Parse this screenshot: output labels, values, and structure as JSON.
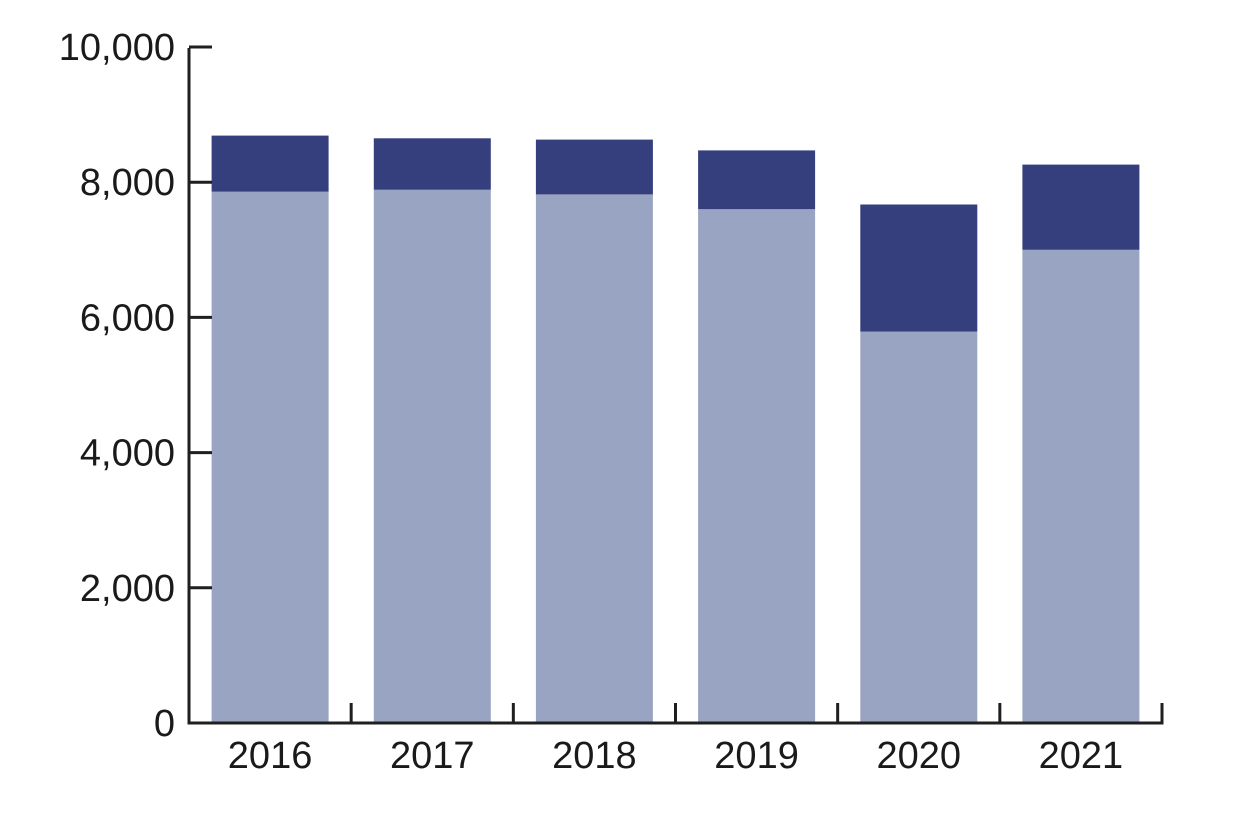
{
  "chart_data": {
    "type": "bar",
    "stacked": true,
    "title": "",
    "xlabel": "",
    "ylabel": "",
    "categories": [
      "2016",
      "2017",
      "2018",
      "2019",
      "2020",
      "2021"
    ],
    "series": [
      {
        "name": "bottom-light-segment",
        "color": "#99a3c2",
        "values": [
          7860,
          7890,
          7820,
          7600,
          5790,
          7000
        ]
      },
      {
        "name": "top-dark-segment",
        "color": "#353f7d",
        "values": [
          830,
          760,
          810,
          870,
          1880,
          1260
        ]
      }
    ],
    "stack_totals": [
      8690,
      8650,
      8630,
      8470,
      7670,
      8260
    ],
    "yaxis": {
      "min": 0,
      "max": 10000,
      "tick_interval": 2000,
      "tick_values": [
        0,
        2000,
        4000,
        6000,
        8000,
        10000
      ],
      "tick_labels": [
        "0",
        "2,000",
        "4,000",
        "6,000",
        "8,000",
        "10,000"
      ]
    },
    "xaxis": {
      "tick_labels": [
        "2016",
        "2017",
        "2018",
        "2019",
        "2020",
        "2021"
      ]
    },
    "legend": "none",
    "grid": false,
    "axis_color": "#1f1f1f",
    "text_color": "#1a1a1a",
    "background_color": "#ffffff"
  }
}
